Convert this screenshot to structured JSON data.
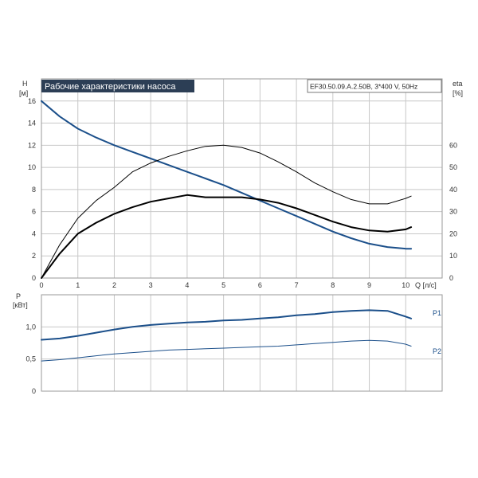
{
  "chart_data": [
    {
      "type": "line",
      "title": "Рабочие характеристики насоса",
      "subtitle": "EF30.50.09.A.2.50B, 3*400 V, 50Hz",
      "ylabel": "H",
      "yunit": "[м]",
      "y2label": "eta",
      "y2unit": "[%]",
      "xlabel": "Q [л/с]",
      "xlim": [
        0,
        11
      ],
      "ylim": [
        0,
        18
      ],
      "y2lim": [
        0,
        90
      ],
      "grid": true,
      "xticks": [
        "0",
        "1",
        "2",
        "3",
        "4",
        "5",
        "6",
        "7",
        "8",
        "9",
        "10"
      ],
      "yticks": [
        "0",
        "2",
        "4",
        "6",
        "8",
        "10",
        "12",
        "14",
        "16"
      ],
      "y2ticks": [
        "0",
        "10",
        "20",
        "30",
        "40",
        "50",
        "60"
      ],
      "series": [
        {
          "axis": "left",
          "color": "#1b4f8a",
          "x": [
            0,
            0.5,
            1,
            1.5,
            2,
            2.5,
            3,
            3.5,
            4,
            4.5,
            5,
            5.5,
            6,
            6.5,
            7,
            7.5,
            8,
            8.5,
            9,
            9.5,
            10,
            10.15
          ],
          "y": [
            16.0,
            14.6,
            13.5,
            12.7,
            12.0,
            11.4,
            10.8,
            10.2,
            9.6,
            9.0,
            8.4,
            7.7,
            7.0,
            6.3,
            5.6,
            4.9,
            4.2,
            3.6,
            3.1,
            2.8,
            2.65,
            2.65
          ]
        },
        {
          "axis": "right",
          "color": "#000000",
          "x": [
            0,
            0.5,
            1,
            1.5,
            2,
            2.5,
            3,
            3.5,
            4,
            4.5,
            5,
            5.5,
            6,
            6.5,
            7,
            7.5,
            8,
            8.5,
            9,
            9.5,
            10,
            10.15
          ],
          "y": [
            0,
            11,
            20,
            25,
            29,
            32,
            34.5,
            36,
            37.5,
            36.5,
            36.5,
            36.5,
            35.5,
            34,
            31.5,
            28.5,
            25.5,
            23,
            21.5,
            21,
            22,
            23
          ]
        },
        {
          "axis": "right",
          "color": "#000000",
          "x": [
            0,
            0.5,
            1,
            1.5,
            2,
            2.5,
            3,
            3.5,
            4,
            4.5,
            5,
            5.5,
            6,
            6.5,
            7,
            7.5,
            8,
            8.5,
            9,
            9.5,
            10,
            10.15
          ],
          "y": [
            0,
            15,
            27,
            35,
            41,
            48,
            52,
            55,
            57.5,
            59.5,
            60,
            59,
            56.5,
            52.5,
            48,
            43,
            39,
            35.5,
            33.5,
            33.5,
            36,
            37
          ]
        }
      ]
    },
    {
      "type": "line",
      "ylabel": "P",
      "yunit": "[кВт]",
      "xlim": [
        0,
        11
      ],
      "ylim": [
        0,
        1.5
      ],
      "grid": true,
      "yticks": [
        "0",
        "0,5",
        "1,0"
      ],
      "series": [
        {
          "name": "P1",
          "color": "#1b4f8a",
          "x": [
            0,
            0.5,
            1,
            1.5,
            2,
            2.5,
            3,
            3.5,
            4,
            4.5,
            5,
            5.5,
            6,
            6.5,
            7,
            7.5,
            8,
            8.5,
            9,
            9.5,
            10,
            10.15
          ],
          "y": [
            0.8,
            0.82,
            0.86,
            0.91,
            0.96,
            1.0,
            1.03,
            1.05,
            1.07,
            1.08,
            1.1,
            1.11,
            1.13,
            1.15,
            1.18,
            1.2,
            1.23,
            1.25,
            1.26,
            1.25,
            1.16,
            1.13
          ]
        },
        {
          "name": "P2",
          "color": "#1b4f8a",
          "x": [
            0,
            0.5,
            1,
            1.5,
            2,
            2.5,
            3,
            3.5,
            4,
            4.5,
            5,
            5.5,
            6,
            6.5,
            7,
            7.5,
            8,
            8.5,
            9,
            9.5,
            10,
            10.15
          ],
          "y": [
            0.47,
            0.49,
            0.52,
            0.55,
            0.58,
            0.6,
            0.62,
            0.64,
            0.65,
            0.66,
            0.67,
            0.68,
            0.69,
            0.7,
            0.72,
            0.74,
            0.76,
            0.78,
            0.79,
            0.78,
            0.73,
            0.7
          ]
        }
      ]
    }
  ]
}
